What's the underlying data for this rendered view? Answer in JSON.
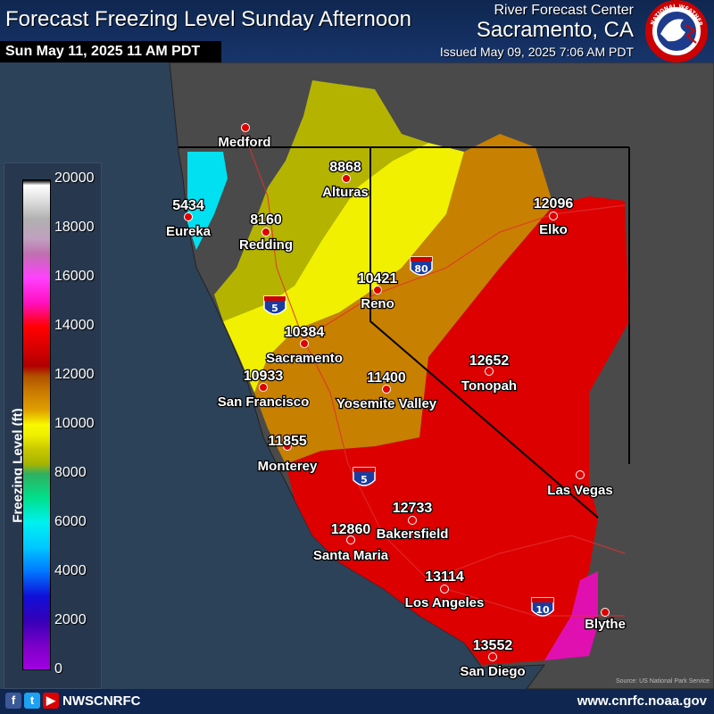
{
  "header": {
    "title": "Forecast Freezing Level Sunday Afternoon",
    "valid_time": "Sun May 11, 2025 11 AM PDT",
    "office_line1": "River Forecast Center",
    "office_line2": "Sacramento, CA",
    "issued": "Issued May 09, 2025 7:06 AM PDT",
    "logo_text_top": "NATIONAL WEATHER",
    "logo_text_bottom": "SERVICE"
  },
  "legend": {
    "title": "Freezing Level (ft)",
    "labels": [
      "20000",
      "18000",
      "16000",
      "14000",
      "12000",
      "10000",
      "8000",
      "6000",
      "4000",
      "2000",
      "0"
    ]
  },
  "cities": [
    {
      "name": "Medford",
      "value": ""
    },
    {
      "name": "Alturas",
      "value": "8868"
    },
    {
      "name": "Eureka",
      "value": "5434"
    },
    {
      "name": "Redding",
      "value": "8160"
    },
    {
      "name": "Elko",
      "value": "12096"
    },
    {
      "name": "Reno",
      "value": "10421"
    },
    {
      "name": "Sacramento",
      "value": "10384"
    },
    {
      "name": "San Francisco",
      "value": "10933"
    },
    {
      "name": "Yosemite Valley",
      "value": "11400"
    },
    {
      "name": "Tonopah",
      "value": "12652"
    },
    {
      "name": "Monterey",
      "value": "11855"
    },
    {
      "name": "Las Vegas",
      "value": ""
    },
    {
      "name": "Bakersfield",
      "value": "12733"
    },
    {
      "name": "Santa Maria",
      "value": "12860"
    },
    {
      "name": "Los Angeles",
      "value": "13114"
    },
    {
      "name": "Blythe",
      "value": ""
    },
    {
      "name": "San Diego",
      "value": "13552"
    }
  ],
  "interstates": [
    "5",
    "80",
    "5",
    "10"
  ],
  "source_note": "Source: US National Park Service",
  "footer": {
    "handle": "NWSCNRFC",
    "website": "www.cnrfc.noaa.gov",
    "social": [
      "f",
      "t",
      "▶"
    ]
  },
  "colors": {
    "header_bg": "#17356b",
    "ocean": "#2c4259",
    "land_outside": "#4a4a4a",
    "contour_cyan": "#00e0f0",
    "contour_green": "#2cd090",
    "contour_olive": "#b4b400",
    "contour_yellow": "#f0f000",
    "contour_orange": "#c88000",
    "contour_red": "#dd0000",
    "contour_magenta": "#e010b0"
  }
}
